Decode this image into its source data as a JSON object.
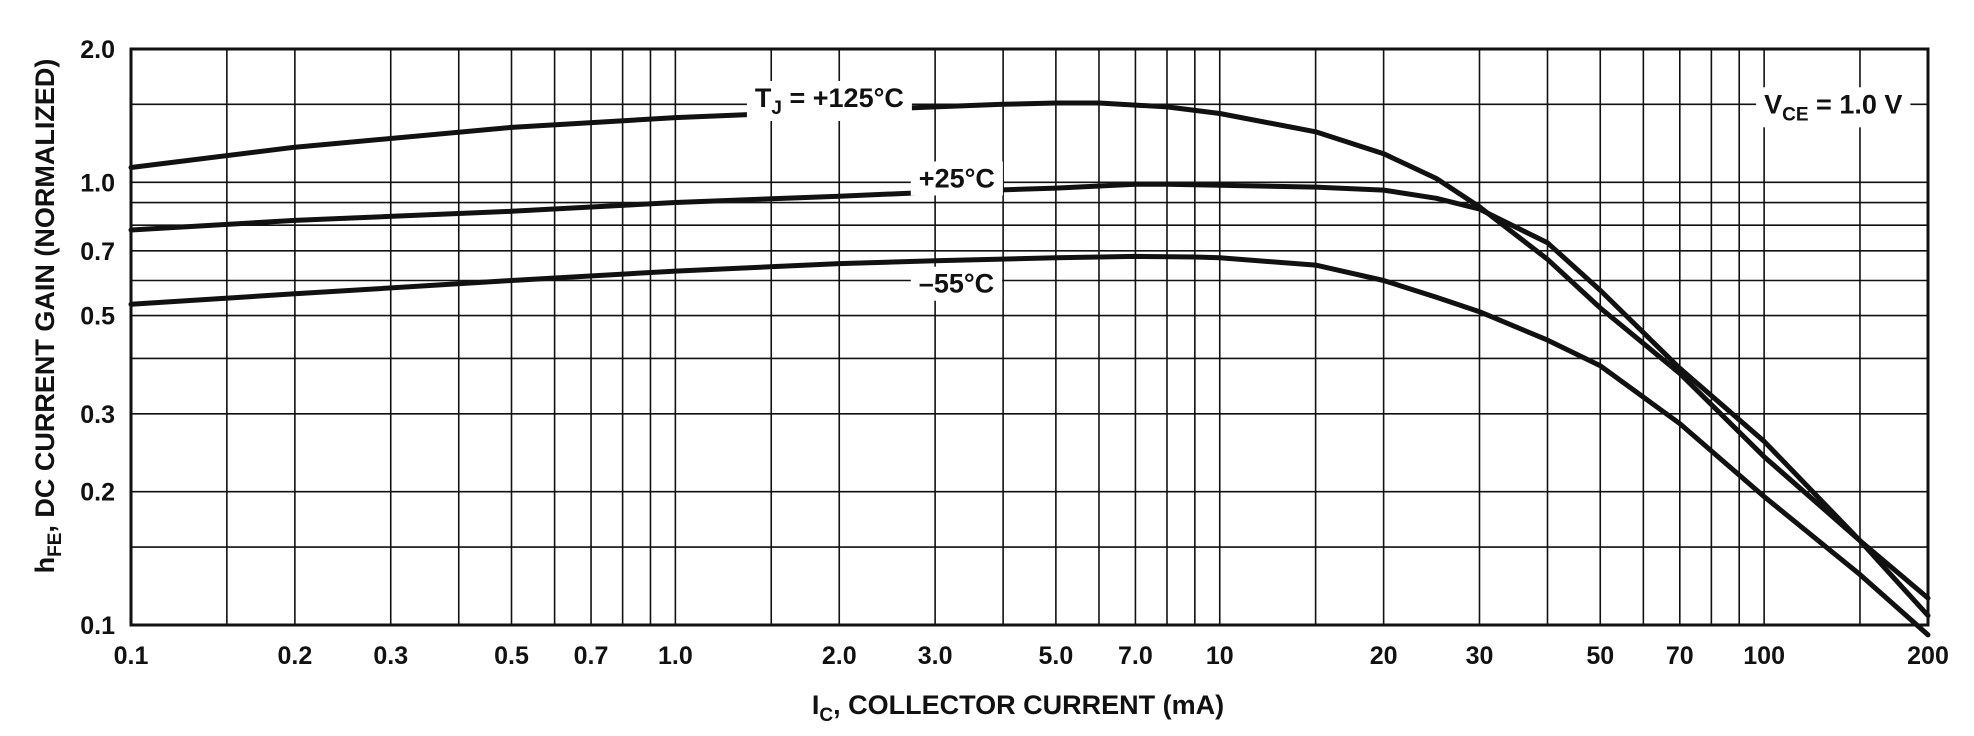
{
  "chart_data": {
    "type": "line",
    "x_scale": "log",
    "y_scale": "log",
    "xlim": [
      0.1,
      200
    ],
    "ylim": [
      0.1,
      2.0
    ],
    "xlabel": {
      "main": "I",
      "sub": "C",
      "rest": ", COLLECTOR CURRENT (mA)"
    },
    "ylabel": {
      "main": "h",
      "sub": "FE",
      "rest": ", DC CURRENT GAIN (NORMALIZED)"
    },
    "x_ticks": [
      {
        "value": 0.1,
        "label": "0.1"
      },
      {
        "value": 0.2,
        "label": "0.2"
      },
      {
        "value": 0.3,
        "label": "0.3"
      },
      {
        "value": 0.5,
        "label": "0.5"
      },
      {
        "value": 0.7,
        "label": "0.7"
      },
      {
        "value": 1.0,
        "label": "1.0"
      },
      {
        "value": 2.0,
        "label": "2.0"
      },
      {
        "value": 3.0,
        "label": "3.0"
      },
      {
        "value": 5.0,
        "label": "5.0"
      },
      {
        "value": 7.0,
        "label": "7.0"
      },
      {
        "value": 10,
        "label": "10"
      },
      {
        "value": 20,
        "label": "20"
      },
      {
        "value": 30,
        "label": "30"
      },
      {
        "value": 50,
        "label": "50"
      },
      {
        "value": 70,
        "label": "70"
      },
      {
        "value": 100,
        "label": "100"
      },
      {
        "value": 200,
        "label": "200"
      }
    ],
    "y_ticks": [
      {
        "value": 0.1,
        "label": "0.1"
      },
      {
        "value": 0.2,
        "label": "0.2"
      },
      {
        "value": 0.3,
        "label": "0.3"
      },
      {
        "value": 0.5,
        "label": "0.5"
      },
      {
        "value": 0.7,
        "label": "0.7"
      },
      {
        "value": 1.0,
        "label": "1.0"
      },
      {
        "value": 2.0,
        "label": "2.0"
      }
    ],
    "x_grid": [
      0.1,
      0.15,
      0.2,
      0.3,
      0.4,
      0.5,
      0.6,
      0.7,
      0.8,
      0.9,
      1,
      1.5,
      2,
      3,
      4,
      5,
      6,
      7,
      8,
      9,
      10,
      15,
      20,
      30,
      40,
      50,
      60,
      70,
      80,
      90,
      100,
      150,
      200
    ],
    "y_grid": [
      0.1,
      0.15,
      0.2,
      0.3,
      0.4,
      0.5,
      0.6,
      0.7,
      0.8,
      0.9,
      1.0,
      1.5,
      2.0
    ],
    "grid": true,
    "annotation": {
      "main": "V",
      "sub": "CE",
      "rest": " = 1.0 V",
      "x": 100,
      "y": 1.5
    },
    "series": [
      {
        "label": {
          "main": "T",
          "sub": "J",
          "rest": " = +125°C",
          "x": 1.4,
          "y": 1.55
        },
        "points": [
          [
            0.1,
            1.08
          ],
          [
            0.2,
            1.2
          ],
          [
            0.5,
            1.33
          ],
          [
            1.0,
            1.4
          ],
          [
            2.0,
            1.45
          ],
          [
            3.0,
            1.48
          ],
          [
            4.0,
            1.5
          ],
          [
            5.0,
            1.51
          ],
          [
            6.0,
            1.51
          ],
          [
            8.0,
            1.48
          ],
          [
            10,
            1.43
          ],
          [
            15,
            1.3
          ],
          [
            20,
            1.16
          ],
          [
            25,
            1.02
          ],
          [
            30,
            0.88
          ],
          [
            40,
            0.67
          ],
          [
            50,
            0.52
          ],
          [
            70,
            0.37
          ],
          [
            100,
            0.24
          ],
          [
            150,
            0.155
          ],
          [
            200,
            0.115
          ]
        ]
      },
      {
        "label": {
          "main": "",
          "sub": "",
          "rest": "+25°C",
          "x": 2.8,
          "y": 1.02
        },
        "points": [
          [
            0.1,
            0.78
          ],
          [
            0.2,
            0.82
          ],
          [
            0.5,
            0.86
          ],
          [
            1.0,
            0.9
          ],
          [
            2.0,
            0.93
          ],
          [
            3.0,
            0.95
          ],
          [
            5.0,
            0.97
          ],
          [
            7.0,
            0.99
          ],
          [
            8.0,
            0.99
          ],
          [
            10,
            0.985
          ],
          [
            15,
            0.975
          ],
          [
            20,
            0.96
          ],
          [
            25,
            0.92
          ],
          [
            30,
            0.87
          ],
          [
            40,
            0.73
          ],
          [
            50,
            0.57
          ],
          [
            70,
            0.38
          ],
          [
            100,
            0.26
          ],
          [
            150,
            0.155
          ],
          [
            200,
            0.105
          ]
        ]
      },
      {
        "label": {
          "main": "",
          "sub": "",
          "rest": "–55°C",
          "x": 2.8,
          "y": 0.59
        },
        "points": [
          [
            0.1,
            0.53
          ],
          [
            0.2,
            0.56
          ],
          [
            0.5,
            0.6
          ],
          [
            1.0,
            0.63
          ],
          [
            2.0,
            0.655
          ],
          [
            3.0,
            0.665
          ],
          [
            5.0,
            0.675
          ],
          [
            7.0,
            0.68
          ],
          [
            9.0,
            0.678
          ],
          [
            10,
            0.675
          ],
          [
            15,
            0.65
          ],
          [
            20,
            0.6
          ],
          [
            25,
            0.55
          ],
          [
            30,
            0.51
          ],
          [
            40,
            0.44
          ],
          [
            50,
            0.385
          ],
          [
            70,
            0.285
          ],
          [
            100,
            0.195
          ],
          [
            150,
            0.13
          ],
          [
            200,
            0.095
          ]
        ]
      }
    ]
  }
}
